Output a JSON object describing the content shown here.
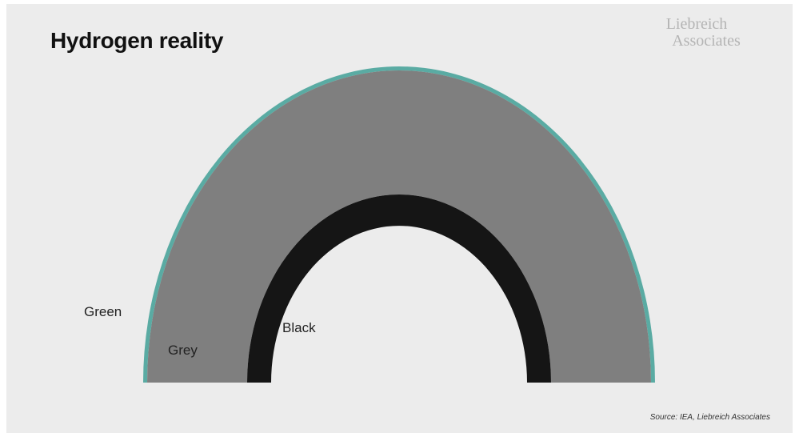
{
  "slide": {
    "title": "Hydrogen reality",
    "brand_line1": "Liebreich",
    "brand_line2": "Associates",
    "source": "Source: IEA, Liebreich Associates"
  },
  "chart_data": {
    "type": "nested semicircle (hydrogen colour shares)",
    "title": "Hydrogen reality",
    "series": [
      {
        "name": "Green",
        "color": "#5aaba3"
      },
      {
        "name": "Grey",
        "color": "#7f7f7f"
      },
      {
        "name": "Black",
        "color": "#151515"
      }
    ],
    "legend_position": "inline labels at left of arcs",
    "background": "#ececec"
  }
}
